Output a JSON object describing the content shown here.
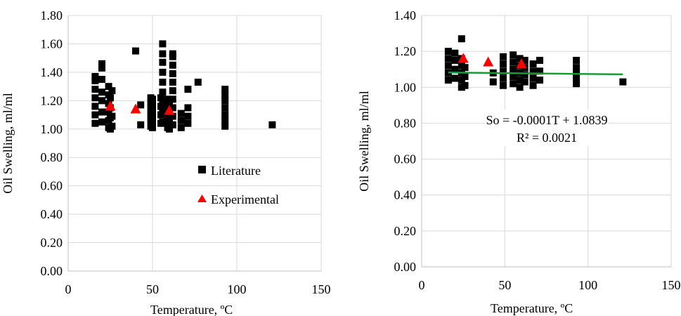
{
  "chart_data": [
    {
      "type": "scatter",
      "title": "",
      "xlabel": "Temperature, ºC",
      "ylabel": "Oil Swelling, ml/ml",
      "xlim": [
        0,
        150
      ],
      "ylim": [
        0,
        1.8
      ],
      "x_ticks": [
        "0",
        "50",
        "100",
        "150"
      ],
      "y_ticks": [
        "0.00",
        "0.20",
        "0.40",
        "0.60",
        "0.80",
        "1.00",
        "1.20",
        "1.40",
        "1.60",
        "1.80"
      ],
      "grid": true,
      "legend_position": "center-right",
      "series": [
        {
          "name": "Literature",
          "marker": "square",
          "color": "#000000",
          "points": [
            [
              16,
              1.04
            ],
            [
              16,
              1.1
            ],
            [
              16,
              1.16
            ],
            [
              16,
              1.22
            ],
            [
              16,
              1.28
            ],
            [
              16,
              1.34
            ],
            [
              16,
              1.37
            ],
            [
              20,
              1.05
            ],
            [
              20,
              1.12
            ],
            [
              20,
              1.2
            ],
            [
              20,
              1.26
            ],
            [
              20,
              1.35
            ],
            [
              20,
              1.43
            ],
            [
              20,
              1.46
            ],
            [
              24,
              1.01
            ],
            [
              24,
              1.06
            ],
            [
              24,
              1.12
            ],
            [
              24,
              1.18
            ],
            [
              24,
              1.24
            ],
            [
              24,
              1.3
            ],
            [
              25,
              1.0
            ],
            [
              25,
              1.08
            ],
            [
              25,
              1.15
            ],
            [
              25,
              1.22
            ],
            [
              26,
              1.02
            ],
            [
              26,
              1.09
            ],
            [
              26,
              1.27
            ],
            [
              40,
              1.55
            ],
            [
              43,
              1.03
            ],
            [
              43,
              1.17
            ],
            [
              49,
              1.02
            ],
            [
              49,
              1.06
            ],
            [
              49,
              1.1
            ],
            [
              49,
              1.14
            ],
            [
              49,
              1.18
            ],
            [
              49,
              1.22
            ],
            [
              50,
              1.01
            ],
            [
              50,
              1.05
            ],
            [
              50,
              1.09
            ],
            [
              50,
              1.13
            ],
            [
              50,
              1.17
            ],
            [
              50,
              1.21
            ],
            [
              55,
              1.04
            ],
            [
              55,
              1.1
            ],
            [
              55,
              1.16
            ],
            [
              55,
              1.22
            ],
            [
              56,
              1.05
            ],
            [
              56,
              1.12
            ],
            [
              56,
              1.19
            ],
            [
              56,
              1.26
            ],
            [
              56,
              1.33
            ],
            [
              56,
              1.4
            ],
            [
              56,
              1.47
            ],
            [
              56,
              1.53
            ],
            [
              56,
              1.6
            ],
            [
              59,
              1.01
            ],
            [
              59,
              1.06
            ],
            [
              59,
              1.11
            ],
            [
              59,
              1.16
            ],
            [
              59,
              1.21
            ],
            [
              60,
              1.0
            ],
            [
              60,
              1.04
            ],
            [
              60,
              1.08
            ],
            [
              60,
              1.12
            ],
            [
              60,
              1.18
            ],
            [
              62,
              1.03
            ],
            [
              62,
              1.09
            ],
            [
              62,
              1.15
            ],
            [
              62,
              1.21
            ],
            [
              62,
              1.27
            ],
            [
              62,
              1.33
            ],
            [
              62,
              1.39
            ],
            [
              62,
              1.45
            ],
            [
              62,
              1.51
            ],
            [
              62,
              1.53
            ],
            [
              67,
              1.01
            ],
            [
              67,
              1.06
            ],
            [
              67,
              1.11
            ],
            [
              71,
              1.04
            ],
            [
              71,
              1.09
            ],
            [
              71,
              1.15
            ],
            [
              71,
              1.28
            ],
            [
              77,
              1.33
            ],
            [
              93,
              1.02
            ],
            [
              93,
              1.06
            ],
            [
              93,
              1.1
            ],
            [
              93,
              1.15
            ],
            [
              93,
              1.2
            ],
            [
              93,
              1.24
            ],
            [
              93,
              1.28
            ],
            [
              121,
              1.03
            ]
          ]
        },
        {
          "name": "Experimental",
          "marker": "triangle",
          "color": "#ff0000",
          "points": [
            [
              25,
              1.16
            ],
            [
              40,
              1.14
            ],
            [
              60,
              1.13
            ]
          ]
        }
      ]
    },
    {
      "type": "scatter",
      "title": "",
      "xlabel": "Temperature, ºC",
      "ylabel": "Oil Swelling, ml/ml",
      "xlim": [
        0,
        150
      ],
      "ylim": [
        0,
        1.4
      ],
      "x_ticks": [
        "0",
        "50",
        "100",
        "150"
      ],
      "y_ticks": [
        "0.00",
        "0.20",
        "0.40",
        "0.60",
        "0.80",
        "1.00",
        "1.20",
        "1.40"
      ],
      "grid": true,
      "series": [
        {
          "marker": "square",
          "color": "#000000",
          "points": [
            [
              16,
              1.04
            ],
            [
              16,
              1.08
            ],
            [
              16,
              1.12
            ],
            [
              16,
              1.16
            ],
            [
              16,
              1.2
            ],
            [
              20,
              1.05
            ],
            [
              20,
              1.1
            ],
            [
              20,
              1.15
            ],
            [
              20,
              1.19
            ],
            [
              24,
              1.0
            ],
            [
              24,
              1.04
            ],
            [
              24,
              1.08
            ],
            [
              24,
              1.12
            ],
            [
              24,
              1.16
            ],
            [
              24,
              1.27
            ],
            [
              26,
              1.01
            ],
            [
              26,
              1.06
            ],
            [
              26,
              1.11
            ],
            [
              43,
              1.03
            ],
            [
              43,
              1.08
            ],
            [
              49,
              1.01
            ],
            [
              49,
              1.05
            ],
            [
              49,
              1.09
            ],
            [
              49,
              1.13
            ],
            [
              49,
              1.17
            ],
            [
              55,
              1.02
            ],
            [
              55,
              1.06
            ],
            [
              55,
              1.1
            ],
            [
              55,
              1.14
            ],
            [
              55,
              1.18
            ],
            [
              59,
              1.0
            ],
            [
              59,
              1.04
            ],
            [
              59,
              1.08
            ],
            [
              59,
              1.12
            ],
            [
              59,
              1.16
            ],
            [
              62,
              1.03
            ],
            [
              62,
              1.07
            ],
            [
              62,
              1.11
            ],
            [
              62,
              1.15
            ],
            [
              67,
              1.01
            ],
            [
              67,
              1.05
            ],
            [
              67,
              1.09
            ],
            [
              67,
              1.13
            ],
            [
              71,
              1.04
            ],
            [
              71,
              1.09
            ],
            [
              71,
              1.15
            ],
            [
              93,
              1.02
            ],
            [
              93,
              1.05
            ],
            [
              93,
              1.08
            ],
            [
              93,
              1.11
            ],
            [
              93,
              1.15
            ],
            [
              121,
              1.03
            ]
          ]
        },
        {
          "marker": "triangle",
          "color": "#ff0000",
          "points": [
            [
              25,
              1.16
            ],
            [
              40,
              1.14
            ],
            [
              60,
              1.13
            ]
          ]
        }
      ],
      "trendline": {
        "color": "#1a9a3a",
        "x_range": [
          16,
          121
        ],
        "slope": -0.0001,
        "intercept": 1.0839
      },
      "annotations": [
        "So = -0.0001T + 1.0839",
        "R² = 0.0021"
      ]
    }
  ]
}
